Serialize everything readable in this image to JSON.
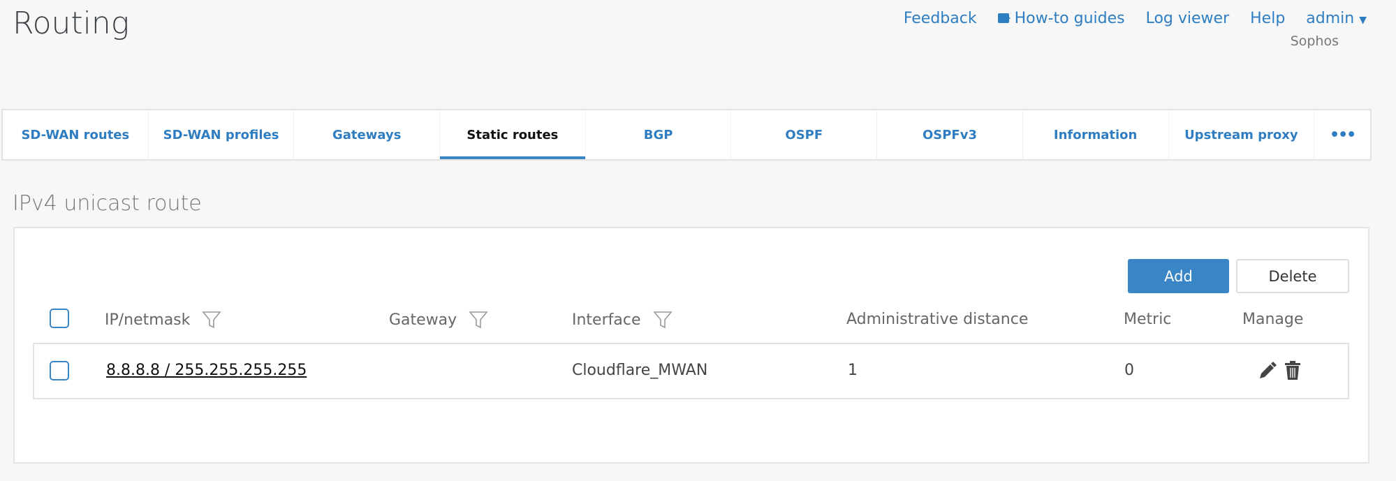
{
  "header": {
    "title": "Routing",
    "links": {
      "feedback": "Feedback",
      "howto": "How-to guides",
      "logviewer": "Log viewer",
      "help": "Help",
      "user": "admin"
    },
    "org": "Sophos"
  },
  "tabs": [
    "SD-WAN routes",
    "SD-WAN profiles",
    "Gateways",
    "Static routes",
    "BGP",
    "OSPF",
    "OSPFv3",
    "Information",
    "Upstream proxy",
    "•••"
  ],
  "active_tab": "Static routes",
  "section": {
    "title": "IPv4 unicast route",
    "add": "Add",
    "delete": "Delete"
  },
  "table": {
    "columns": [
      "IP/netmask",
      "Gateway",
      "Interface",
      "Administrative distance",
      "Metric",
      "Manage"
    ],
    "rows": [
      {
        "ip": "8.8.8.8 / 255.255.255.255",
        "gateway": "",
        "interface": "Cloudflare_MWAN",
        "distance": "1",
        "metric": "0"
      }
    ]
  },
  "colors": {
    "accent": "#3a85c6",
    "link": "#2f7dc1"
  }
}
